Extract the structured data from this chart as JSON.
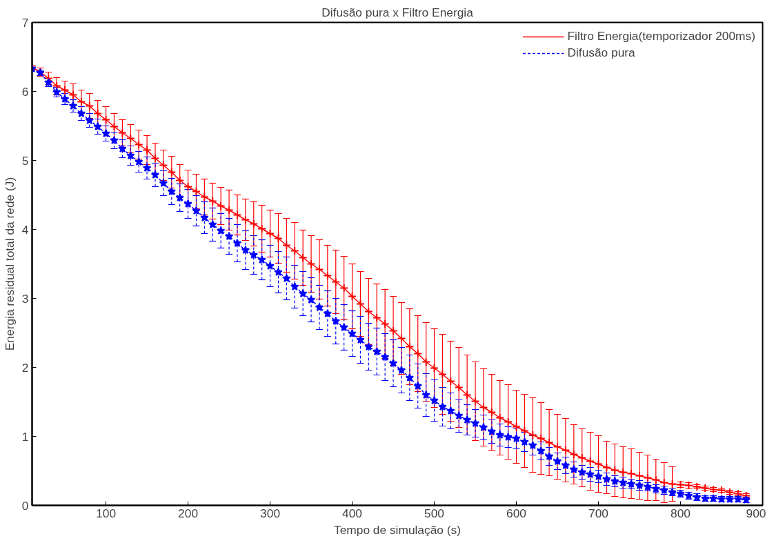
{
  "chart_data": {
    "type": "line",
    "title": "Difusão pura x Filtro Energia",
    "xlabel": "Tempo de simulação (s)",
    "ylabel": "Energia residual total da rede (J)",
    "x": [
      10,
      20,
      30,
      40,
      50,
      60,
      70,
      80,
      90,
      100,
      110,
      120,
      130,
      140,
      150,
      160,
      170,
      180,
      190,
      200,
      210,
      220,
      230,
      240,
      250,
      260,
      270,
      280,
      290,
      300,
      310,
      320,
      330,
      340,
      350,
      360,
      370,
      380,
      390,
      400,
      410,
      420,
      430,
      440,
      450,
      460,
      470,
      480,
      490,
      500,
      510,
      520,
      530,
      540,
      550,
      560,
      570,
      580,
      590,
      600,
      610,
      620,
      630,
      640,
      650,
      660,
      670,
      680,
      690,
      700,
      710,
      720,
      730,
      740,
      750,
      760,
      770,
      780,
      790,
      800,
      810,
      820,
      830,
      840,
      850,
      860,
      870,
      880
    ],
    "series": [
      {
        "name": "Filtro Energia(temporizador 200ms)",
        "color": "#ff0000",
        "marker": "cross",
        "line_style": "solid",
        "values": [
          6.35,
          6.28,
          6.19,
          6.08,
          6.02,
          5.95,
          5.85,
          5.79,
          5.68,
          5.59,
          5.49,
          5.4,
          5.32,
          5.23,
          5.15,
          5.03,
          4.93,
          4.83,
          4.71,
          4.62,
          4.55,
          4.47,
          4.41,
          4.34,
          4.28,
          4.21,
          4.14,
          4.08,
          4.01,
          3.94,
          3.87,
          3.77,
          3.69,
          3.59,
          3.5,
          3.42,
          3.33,
          3.24,
          3.15,
          3.03,
          2.92,
          2.81,
          2.72,
          2.63,
          2.53,
          2.42,
          2.3,
          2.2,
          2.08,
          1.99,
          1.9,
          1.8,
          1.71,
          1.6,
          1.51,
          1.42,
          1.35,
          1.27,
          1.21,
          1.14,
          1.08,
          1.02,
          0.97,
          0.91,
          0.85,
          0.8,
          0.74,
          0.69,
          0.64,
          0.6,
          0.55,
          0.51,
          0.48,
          0.46,
          0.43,
          0.4,
          0.37,
          0.33,
          0.31,
          0.3,
          0.29,
          0.27,
          0.25,
          0.23,
          0.22,
          0.19,
          0.17,
          0.14
        ],
        "errors": [
          0.03,
          0.06,
          0.09,
          0.12,
          0.13,
          0.16,
          0.17,
          0.18,
          0.19,
          0.19,
          0.19,
          0.19,
          0.2,
          0.21,
          0.21,
          0.22,
          0.22,
          0.23,
          0.23,
          0.24,
          0.25,
          0.26,
          0.26,
          0.27,
          0.29,
          0.29,
          0.3,
          0.32,
          0.34,
          0.34,
          0.36,
          0.39,
          0.41,
          0.4,
          0.41,
          0.43,
          0.44,
          0.46,
          0.46,
          0.47,
          0.47,
          0.48,
          0.49,
          0.5,
          0.5,
          0.52,
          0.55,
          0.55,
          0.57,
          0.57,
          0.58,
          0.58,
          0.58,
          0.58,
          0.57,
          0.56,
          0.55,
          0.54,
          0.54,
          0.53,
          0.53,
          0.54,
          0.52,
          0.48,
          0.47,
          0.46,
          0.43,
          0.42,
          0.42,
          0.41,
          0.38,
          0.38,
          0.37,
          0.36,
          0.34,
          0.33,
          0.3,
          0.29,
          0.25,
          0.04,
          0.04,
          0.03,
          0.03,
          0.03,
          0.03,
          0.03,
          0.03,
          0.03
        ]
      },
      {
        "name": "Difusão pura",
        "color": "#0000ff",
        "marker": "star",
        "line_style": "dashed",
        "values": [
          6.33,
          6.27,
          6.13,
          5.99,
          5.89,
          5.79,
          5.68,
          5.58,
          5.49,
          5.39,
          5.29,
          5.17,
          5.07,
          4.98,
          4.89,
          4.79,
          4.67,
          4.55,
          4.46,
          4.37,
          4.27,
          4.17,
          4.07,
          3.98,
          3.9,
          3.8,
          3.7,
          3.63,
          3.56,
          3.47,
          3.38,
          3.29,
          3.17,
          3.07,
          2.98,
          2.87,
          2.78,
          2.67,
          2.58,
          2.49,
          2.4,
          2.3,
          2.23,
          2.15,
          2.06,
          1.96,
          1.85,
          1.73,
          1.6,
          1.52,
          1.43,
          1.37,
          1.3,
          1.24,
          1.19,
          1.13,
          1.07,
          1.02,
          0.99,
          0.97,
          0.92,
          0.87,
          0.79,
          0.71,
          0.64,
          0.58,
          0.52,
          0.48,
          0.45,
          0.42,
          0.38,
          0.35,
          0.33,
          0.31,
          0.29,
          0.27,
          0.24,
          0.22,
          0.19,
          0.17,
          0.14,
          0.12,
          0.1,
          0.1,
          0.09,
          0.09,
          0.09,
          0.08
        ],
        "errors": [
          0.02,
          0.04,
          0.06,
          0.07,
          0.08,
          0.09,
          0.1,
          0.1,
          0.11,
          0.11,
          0.12,
          0.13,
          0.14,
          0.15,
          0.16,
          0.17,
          0.18,
          0.19,
          0.2,
          0.21,
          0.22,
          0.23,
          0.24,
          0.25,
          0.26,
          0.27,
          0.28,
          0.28,
          0.29,
          0.3,
          0.3,
          0.31,
          0.31,
          0.32,
          0.32,
          0.32,
          0.33,
          0.33,
          0.33,
          0.33,
          0.34,
          0.34,
          0.34,
          0.34,
          0.34,
          0.33,
          0.33,
          0.32,
          0.31,
          0.3,
          0.28,
          0.26,
          0.24,
          0.22,
          0.2,
          0.18,
          0.17,
          0.16,
          0.15,
          0.15,
          0.14,
          0.14,
          0.13,
          0.13,
          0.12,
          0.12,
          0.11,
          0.1,
          0.1,
          0.09,
          0.09,
          0.08,
          0.08,
          0.07,
          0.07,
          0.06,
          0.06,
          0.06,
          0.05,
          0.05,
          0.05,
          0.05,
          0.04,
          0.04,
          0.04,
          0.04,
          0.04,
          0.04
        ]
      }
    ],
    "xlim": [
      10,
      900
    ],
    "xticks": [
      100,
      200,
      300,
      400,
      500,
      600,
      700,
      800,
      900
    ],
    "ylim": [
      0,
      7
    ],
    "yticks": [
      0,
      1,
      2,
      3,
      4,
      5,
      6,
      7
    ],
    "grid": false,
    "legend": "top right"
  }
}
